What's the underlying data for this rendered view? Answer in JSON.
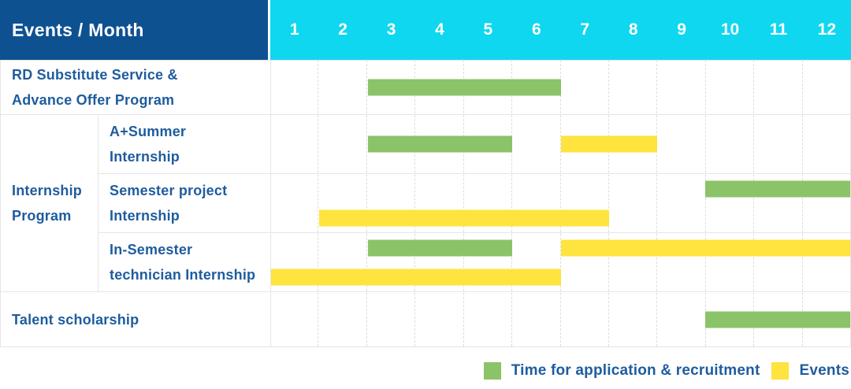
{
  "chart_data": {
    "type": "gantt",
    "corner_label": "Events / Month",
    "x_categories": [
      "1",
      "2",
      "3",
      "4",
      "5",
      "6",
      "7",
      "8",
      "9",
      "10",
      "11",
      "12"
    ],
    "group_label_lines": [
      "Internship",
      "Program"
    ],
    "rows": [
      {
        "group": "",
        "label_lines": [
          "RD Substitute Service &",
          "Advance Offer Program"
        ],
        "bars_lines": [
          [
            {
              "series": "Time for application & recruitment",
              "color_key": "green",
              "start_month": 3,
              "end_month": 6
            }
          ]
        ]
      },
      {
        "group": "Internship Program",
        "label_lines": [
          "A+Summer",
          "Internship"
        ],
        "bars_lines": [
          [
            {
              "series": "Time for application & recruitment",
              "color_key": "green",
              "start_month": 3,
              "end_month": 5
            },
            {
              "series": "Events",
              "color_key": "yellow",
              "start_month": 7,
              "end_month": 8
            }
          ]
        ]
      },
      {
        "group": "Internship Program",
        "label_lines": [
          "Semester project",
          "Internship"
        ],
        "bars_lines": [
          [
            {
              "series": "Time for application & recruitment",
              "color_key": "green",
              "start_month": 10,
              "end_month": 12
            }
          ],
          [
            {
              "series": "Events",
              "color_key": "yellow",
              "start_month": 2,
              "end_month": 7
            }
          ]
        ]
      },
      {
        "group": "Internship Program",
        "label_lines": [
          "In-Semester",
          "technician Internship"
        ],
        "bars_lines": [
          [
            {
              "series": "Time for application & recruitment",
              "color_key": "green",
              "start_month": 3,
              "end_month": 5
            },
            {
              "series": "Events",
              "color_key": "yellow",
              "start_month": 7,
              "end_month": 12
            }
          ],
          [
            {
              "series": "Events",
              "color_key": "yellow",
              "start_month": 1,
              "end_month": 6
            }
          ]
        ]
      },
      {
        "group": "",
        "label_lines": [
          "Talent scholarship"
        ],
        "bars_lines": [
          [
            {
              "series": "Time for application & recruitment",
              "color_key": "green",
              "start_month": 10,
              "end_month": 12
            }
          ]
        ]
      }
    ],
    "legend": [
      {
        "color_key": "green",
        "label": "Time for application & recruitment"
      },
      {
        "color_key": "yellow",
        "label": "Events"
      }
    ]
  },
  "colors": {
    "header_bg": "#0E5191",
    "months_bg": "#0FD7EF",
    "bar_green": "#8BC369",
    "bar_yellow": "#FFE33E",
    "label_text": "#1E5C9E",
    "header_text": "#FFFFFF",
    "grid_line": "#E6E6E6"
  }
}
